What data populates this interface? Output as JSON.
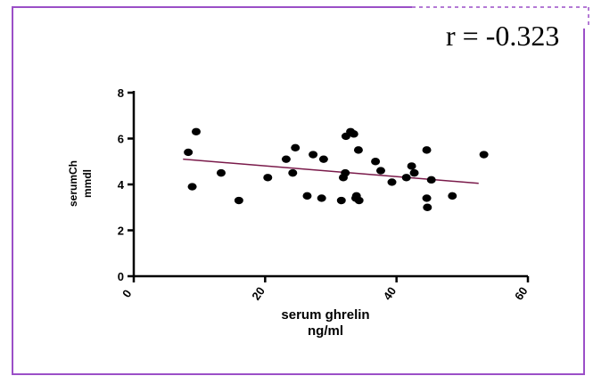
{
  "colors": {
    "border": "#9b4fc7",
    "axis": "#000000",
    "trend": "#7a1a4a",
    "point": "#000000"
  },
  "annotation": "r = -0.323",
  "chart_data": {
    "type": "scatter",
    "title": "",
    "xlabel": "serum ghrelin",
    "xlabel_unit": "ng/ml",
    "ylabel": "serumCh",
    "ylabel_unit": "mmdl",
    "xlim": [
      0,
      60
    ],
    "ylim": [
      0,
      8
    ],
    "xticks": [
      "0",
      "20",
      "40",
      "60"
    ],
    "yticks": [
      "0",
      "2",
      "4",
      "6",
      "8"
    ],
    "grid": false,
    "points": [
      {
        "x": 8.3,
        "y": 5.4
      },
      {
        "x": 8.9,
        "y": 3.9
      },
      {
        "x": 9.5,
        "y": 6.3
      },
      {
        "x": 13.3,
        "y": 4.5
      },
      {
        "x": 16.0,
        "y": 3.3
      },
      {
        "x": 20.4,
        "y": 4.3
      },
      {
        "x": 23.2,
        "y": 5.1
      },
      {
        "x": 24.2,
        "y": 4.5
      },
      {
        "x": 24.6,
        "y": 5.6
      },
      {
        "x": 26.4,
        "y": 3.5
      },
      {
        "x": 27.3,
        "y": 5.3
      },
      {
        "x": 28.6,
        "y": 3.4
      },
      {
        "x": 28.9,
        "y": 5.1
      },
      {
        "x": 31.6,
        "y": 3.3
      },
      {
        "x": 31.9,
        "y": 4.3
      },
      {
        "x": 32.2,
        "y": 4.5
      },
      {
        "x": 32.3,
        "y": 6.1
      },
      {
        "x": 33.0,
        "y": 6.3
      },
      {
        "x": 33.5,
        "y": 6.2
      },
      {
        "x": 33.8,
        "y": 3.4
      },
      {
        "x": 33.9,
        "y": 3.5
      },
      {
        "x": 34.2,
        "y": 5.5
      },
      {
        "x": 34.3,
        "y": 3.3
      },
      {
        "x": 36.8,
        "y": 5.0
      },
      {
        "x": 37.6,
        "y": 4.6
      },
      {
        "x": 39.3,
        "y": 4.1
      },
      {
        "x": 41.5,
        "y": 4.3
      },
      {
        "x": 42.3,
        "y": 4.8
      },
      {
        "x": 42.7,
        "y": 4.5
      },
      {
        "x": 44.6,
        "y": 5.5
      },
      {
        "x": 44.6,
        "y": 3.4
      },
      {
        "x": 44.7,
        "y": 3.0
      },
      {
        "x": 45.3,
        "y": 4.2
      },
      {
        "x": 48.5,
        "y": 3.5
      },
      {
        "x": 53.3,
        "y": 5.3
      }
    ],
    "trendline": [
      {
        "x": 7.5,
        "y": 5.1
      },
      {
        "x": 52.5,
        "y": 4.05
      }
    ]
  }
}
